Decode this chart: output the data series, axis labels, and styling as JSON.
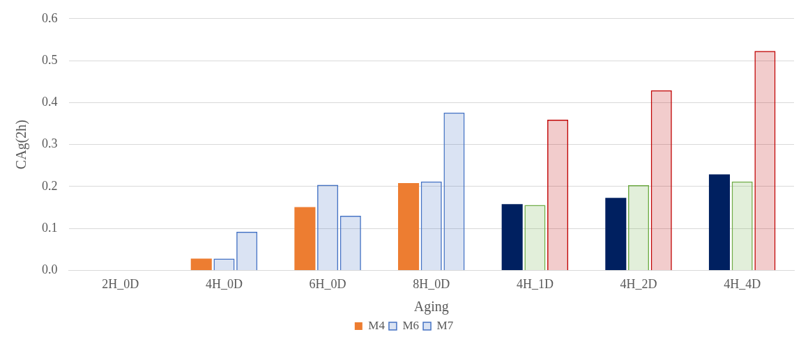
{
  "chart_data": {
    "type": "bar",
    "xlabel": "Aging",
    "ylabel": "CAg(2h)",
    "categories": [
      "2H_0D",
      "4H_0D",
      "6H_0D",
      "8H_0D",
      "4H_1D",
      "4H_2D",
      "4H_4D"
    ],
    "series": [
      {
        "name": "M4",
        "color": "#ed7d31",
        "colors": [
          "#ed7d31",
          "#ed7d31",
          "#ed7d31",
          "#ed7d31",
          "#002060",
          "#002060",
          "#002060"
        ],
        "values": [
          0,
          0.028,
          0.151,
          0.208,
          0.158,
          0.173,
          0.229
        ]
      },
      {
        "name": "M6",
        "color": "#4472c4",
        "colors": [
          "#4472c4",
          "#4472c4",
          "#4472c4",
          "#4472c4",
          "#70ad47",
          "#70ad47",
          "#70ad47"
        ],
        "values": [
          0,
          0.028,
          0.204,
          0.212,
          0.156,
          0.203,
          0.212
        ]
      },
      {
        "name": "M7",
        "color": "#4472c4",
        "colors": [
          "#4472c4",
          "#4472c4",
          "#4472c4",
          "#4472c4",
          "#c00000",
          "#c00000",
          "#c00000"
        ],
        "values": [
          0,
          0.092,
          0.13,
          0.376,
          0.359,
          0.429,
          0.523
        ]
      }
    ],
    "ylim": [
      0,
      0.6
    ],
    "yticks": [
      "0.0",
      0.1,
      0.2,
      0.3,
      0.4,
      0.5,
      0.6
    ],
    "grid": "y",
    "legend": "bottom"
  }
}
